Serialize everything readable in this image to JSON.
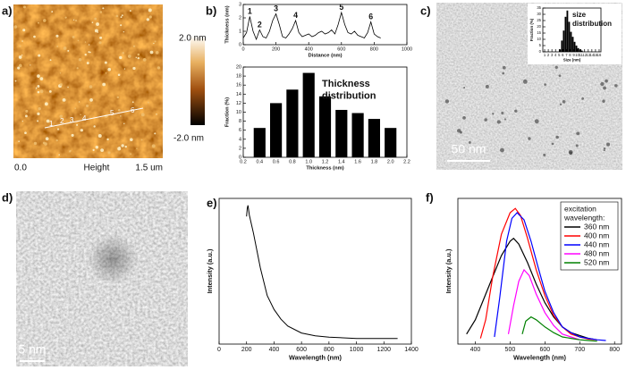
{
  "panel_labels": [
    "a)",
    "b)",
    "c)",
    "d)",
    "e)",
    "f)"
  ],
  "afm": {
    "colorbar_max": "2.0 nm",
    "colorbar_min": "-2.0 nm",
    "x_start": "0.0",
    "x_label": "Height",
    "x_end": "1.5 um",
    "line_markers": [
      "1",
      "2",
      "3",
      "4",
      "5",
      "6"
    ]
  },
  "tem_c": {
    "scale_bar": "50 nm"
  },
  "tem_d": {
    "scale_bar": "5 nm"
  },
  "chart_data": [
    {
      "type": "line",
      "xlabel": "Distance (nm)",
      "ylabel": "Thickness (nm)",
      "xlim": [
        0,
        1000
      ],
      "xticks": [
        0,
        200,
        400,
        600,
        800,
        1000
      ],
      "ylim": [
        0,
        3
      ],
      "yticks": [
        0,
        1,
        2,
        3
      ],
      "series": [
        {
          "color": "#000000",
          "x": [
            0,
            20,
            40,
            60,
            80,
            100,
            120,
            140,
            160,
            180,
            200,
            220,
            240,
            260,
            280,
            300,
            320,
            340,
            360,
            380,
            400,
            420,
            440,
            460,
            480,
            500,
            520,
            540,
            560,
            580,
            600,
            620,
            640,
            660,
            680,
            700,
            720,
            740,
            760,
            780,
            800,
            820,
            840
          ],
          "values": [
            0.5,
            0.9,
            2.1,
            1.0,
            0.4,
            1.1,
            0.6,
            0.5,
            1.0,
            1.8,
            2.3,
            1.5,
            0.6,
            0.5,
            0.8,
            1.2,
            1.8,
            0.9,
            0.6,
            0.7,
            0.8,
            0.6,
            0.7,
            0.9,
            1.0,
            0.8,
            0.9,
            1.1,
            0.8,
            1.5,
            2.4,
            1.5,
            0.9,
            0.8,
            1.0,
            0.7,
            0.6,
            0.5,
            0.9,
            1.7,
            0.8,
            0.6,
            0.5
          ]
        }
      ],
      "annotations": [
        {
          "text": "1",
          "x": 40,
          "y": 2.1
        },
        {
          "text": "2",
          "x": 100,
          "y": 1.1
        },
        {
          "text": "3",
          "x": 200,
          "y": 2.3
        },
        {
          "text": "4",
          "x": 320,
          "y": 1.8
        },
        {
          "text": "5",
          "x": 600,
          "y": 2.4
        },
        {
          "text": "6",
          "x": 780,
          "y": 1.7
        }
      ]
    },
    {
      "type": "histogram",
      "xlabel": "Thickness (nm)",
      "ylabel": "Fraction (%)",
      "annotation": [
        "Thickness",
        "distribution"
      ],
      "bins": [
        0.3,
        0.5,
        0.7,
        0.9,
        1.1,
        1.3,
        1.5,
        1.7,
        1.9,
        2.1
      ],
      "counts": [
        6.5,
        12,
        15,
        18.7,
        13.5,
        10.5,
        9.8,
        8.5,
        6.5
      ],
      "color": "#000000",
      "xlim": [
        0.2,
        2.2
      ],
      "xticks": [
        0.2,
        0.4,
        0.6,
        0.8,
        {
          "value": 1,
          "label": "1.0"
        },
        1.2,
        1.4,
        1.6,
        1.8,
        {
          "value": 2,
          "label": "2.0"
        },
        2.2
      ],
      "ylim": [
        0,
        20
      ],
      "yticks": [
        0,
        2,
        4,
        6,
        8,
        10,
        12,
        14,
        16,
        18,
        20
      ]
    },
    {
      "type": "histogram",
      "xlabel": "Size (nm)",
      "ylabel": "Fraction (%)",
      "annotation": [
        "size",
        "distribution"
      ],
      "bins": [
        5,
        5.5,
        6,
        6.5,
        7,
        7.5,
        8,
        8.5,
        9,
        9.5,
        10,
        10.5,
        11,
        11.5
      ],
      "counts": [
        2,
        9,
        17,
        28,
        33,
        24,
        16,
        12,
        8,
        5,
        3,
        2,
        1
      ],
      "color": "#000000",
      "xlim": [
        0.5,
        16.5
      ],
      "xticks": [
        1,
        2,
        3,
        4,
        5,
        6,
        7,
        8,
        9,
        10,
        11,
        12,
        13,
        14,
        15,
        16
      ],
      "ylim": [
        0,
        35
      ],
      "yticks": [
        0,
        5,
        10,
        15,
        20,
        25,
        30,
        35
      ]
    },
    {
      "type": "line",
      "xlabel": "Wavelength (nm)",
      "ylabel": "Intensity (a.u.)",
      "xlim": [
        0,
        1400
      ],
      "xticks": [
        0,
        200,
        400,
        600,
        800,
        1000,
        1200,
        1400
      ],
      "ylim": [
        0,
        1.05
      ],
      "series": [
        {
          "color": "#000000",
          "x": [
            200,
            205,
            210,
            220,
            250,
            300,
            350,
            400,
            450,
            500,
            600,
            700,
            800,
            1000,
            1300
          ],
          "values": [
            0.92,
            0.98,
            1.0,
            0.93,
            0.8,
            0.55,
            0.35,
            0.25,
            0.18,
            0.13,
            0.08,
            0.06,
            0.05,
            0.04,
            0.04
          ]
        }
      ]
    },
    {
      "type": "line",
      "xlabel": "Wavelength (nm)",
      "ylabel": "Intensity (a.u.)",
      "xlim": [
        350,
        820
      ],
      "xticks": [
        400,
        500,
        600,
        700,
        800
      ],
      "ylim": [
        -0.02,
        1
      ],
      "legend_title": [
        "excitation",
        "wavelength:"
      ],
      "legend": "upper right",
      "series": [
        {
          "name": "360 nm",
          "color": "#000000",
          "x": [
            375,
            400,
            425,
            450,
            475,
            500,
            510,
            525,
            550,
            575,
            600,
            625,
            650,
            675,
            700,
            725,
            750
          ],
          "values": [
            0.05,
            0.15,
            0.3,
            0.45,
            0.6,
            0.7,
            0.72,
            0.68,
            0.55,
            0.4,
            0.27,
            0.17,
            0.1,
            0.06,
            0.04,
            0.02,
            0.01
          ]
        },
        {
          "name": "400 nm",
          "color": "#ff0000",
          "x": [
            415,
            430,
            450,
            475,
            500,
            515,
            530,
            550,
            575,
            600,
            625,
            650,
            675,
            700,
            725,
            750
          ],
          "values": [
            0.02,
            0.15,
            0.45,
            0.75,
            0.9,
            0.93,
            0.88,
            0.72,
            0.5,
            0.32,
            0.18,
            0.1,
            0.05,
            0.03,
            0.015,
            0.01
          ]
        },
        {
          "name": "440 nm",
          "color": "#0000ff",
          "x": [
            455,
            470,
            490,
            505,
            520,
            540,
            560,
            580,
            600,
            625,
            650,
            675,
            700,
            725,
            750,
            775
          ],
          "values": [
            0.03,
            0.3,
            0.7,
            0.86,
            0.9,
            0.85,
            0.7,
            0.52,
            0.35,
            0.2,
            0.1,
            0.06,
            0.03,
            0.02,
            0.01,
            0.005
          ]
        },
        {
          "name": "480 nm",
          "color": "#ff00ff",
          "x": [
            495,
            510,
            525,
            540,
            555,
            575,
            600,
            625,
            650,
            675,
            700
          ],
          "values": [
            0.05,
            0.25,
            0.42,
            0.5,
            0.46,
            0.33,
            0.2,
            0.11,
            0.05,
            0.03,
            0.01
          ]
        },
        {
          "name": "520 nm",
          "color": "#008000",
          "x": [
            535,
            545,
            560,
            575,
            600,
            625,
            650,
            675,
            700,
            725,
            750
          ],
          "values": [
            0.05,
            0.14,
            0.17,
            0.15,
            0.1,
            0.06,
            0.03,
            0.02,
            0.01,
            0.005,
            0
          ]
        }
      ]
    }
  ]
}
